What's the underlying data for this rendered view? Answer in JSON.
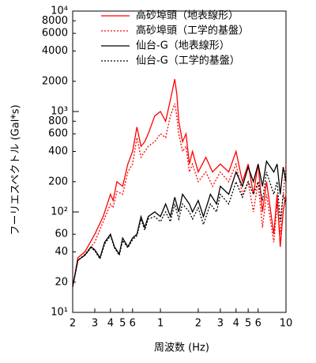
{
  "chart_data": {
    "type": "line",
    "xlabel": "周波数 (Hz)",
    "ylabel": "フーリエスペクトル (Gal*s)",
    "log_x": true,
    "log_y": true,
    "xlim": [
      0.2,
      10
    ],
    "ylim": [
      10,
      10000
    ],
    "xticks": [
      {
        "value": 0.2,
        "label": "2"
      },
      {
        "value": 0.3,
        "label": "3"
      },
      {
        "value": 0.4,
        "label": "4"
      },
      {
        "value": 0.5,
        "label": "5"
      },
      {
        "value": 0.6,
        "label": "6"
      },
      1,
      2,
      3,
      4,
      5,
      6,
      10
    ],
    "yticks": [
      {
        "value": 10,
        "label": "10¹"
      },
      20,
      40,
      60,
      {
        "value": 100,
        "label": "10²"
      },
      200,
      400,
      600,
      800,
      {
        "value": 1000,
        "label": "10³"
      },
      2000,
      4000,
      6000,
      8000,
      {
        "value": 10000,
        "label": "10⁴"
      }
    ],
    "legend": "upper right",
    "series": [
      {
        "name": "高砂埠頭（地表線形）",
        "color": "#ff0000",
        "linestyle": "solid",
        "x": [
          0.2,
          0.22,
          0.25,
          0.3,
          0.35,
          0.4,
          0.42,
          0.45,
          0.5,
          0.55,
          0.6,
          0.65,
          0.7,
          0.75,
          0.8,
          0.9,
          1.0,
          1.1,
          1.2,
          1.3,
          1.35,
          1.4,
          1.5,
          1.6,
          1.7,
          1.8,
          2,
          2.3,
          2.6,
          3,
          3.5,
          4,
          4.5,
          5,
          5.5,
          6,
          6.5,
          7,
          8,
          8.5,
          9,
          9.5,
          10
        ],
        "values": [
          18,
          35,
          40,
          60,
          90,
          150,
          130,
          200,
          180,
          300,
          400,
          700,
          450,
          500,
          600,
          900,
          1000,
          800,
          1300,
          2100,
          1500,
          800,
          500,
          600,
          300,
          400,
          250,
          350,
          250,
          300,
          250,
          400,
          200,
          300,
          150,
          300,
          100,
          200,
          60,
          150,
          45,
          100,
          150
        ]
      },
      {
        "name": "高砂埠頭（工学的基盤）",
        "color": "#ff0000",
        "linestyle": "dotted",
        "x": [
          0.2,
          0.22,
          0.25,
          0.3,
          0.35,
          0.4,
          0.42,
          0.45,
          0.5,
          0.55,
          0.6,
          0.65,
          0.7,
          0.75,
          0.8,
          0.9,
          1.0,
          1.1,
          1.2,
          1.3,
          1.35,
          1.4,
          1.5,
          1.6,
          1.7,
          1.8,
          2,
          2.3,
          2.6,
          3,
          3.5,
          4,
          4.5,
          5,
          5.5,
          6,
          6.5,
          7,
          8,
          8.5,
          9,
          9.5,
          10
        ],
        "values": [
          18,
          33,
          38,
          50,
          80,
          120,
          110,
          160,
          150,
          250,
          300,
          550,
          350,
          400,
          450,
          500,
          600,
          550,
          900,
          1200,
          900,
          600,
          400,
          450,
          250,
          300,
          200,
          250,
          180,
          250,
          200,
          300,
          150,
          200,
          100,
          200,
          70,
          150,
          50,
          120,
          60,
          150,
          300
        ]
      },
      {
        "name": "仙台-G（地表線形）",
        "color": "#000000",
        "linestyle": "solid",
        "x": [
          0.2,
          0.22,
          0.25,
          0.28,
          0.3,
          0.33,
          0.36,
          0.4,
          0.43,
          0.47,
          0.5,
          0.55,
          0.6,
          0.65,
          0.7,
          0.75,
          0.8,
          0.9,
          1,
          1.1,
          1.2,
          1.3,
          1.4,
          1.5,
          1.7,
          1.8,
          2,
          2.2,
          2.5,
          2.8,
          3,
          3.5,
          4,
          4.5,
          5,
          5.5,
          6,
          6.5,
          7,
          8,
          8.5,
          9,
          9.5,
          10
        ],
        "values": [
          18,
          33,
          37,
          45,
          42,
          35,
          50,
          60,
          45,
          38,
          55,
          45,
          55,
          60,
          90,
          70,
          90,
          100,
          90,
          120,
          90,
          140,
          100,
          150,
          120,
          100,
          130,
          90,
          150,
          120,
          180,
          150,
          250,
          180,
          280,
          200,
          300,
          180,
          320,
          250,
          300,
          150,
          280,
          200
        ]
      },
      {
        "name": "仙台-G（工学的基盤）",
        "color": "#000000",
        "linestyle": "dotted",
        "x": [
          0.2,
          0.22,
          0.25,
          0.28,
          0.3,
          0.33,
          0.36,
          0.4,
          0.43,
          0.47,
          0.5,
          0.55,
          0.6,
          0.65,
          0.7,
          0.75,
          0.8,
          0.9,
          1,
          1.1,
          1.2,
          1.3,
          1.4,
          1.5,
          1.7,
          1.8,
          2,
          2.2,
          2.5,
          2.8,
          3,
          3.5,
          4,
          4.5,
          5,
          5.5,
          6,
          6.5,
          7,
          8,
          8.5,
          9,
          9.5,
          10
        ],
        "values": [
          18,
          33,
          37,
          44,
          41,
          34,
          48,
          58,
          44,
          37,
          52,
          44,
          53,
          58,
          85,
          66,
          85,
          90,
          80,
          100,
          80,
          120,
          85,
          120,
          100,
          85,
          110,
          75,
          120,
          100,
          150,
          120,
          200,
          140,
          200,
          150,
          200,
          130,
          250,
          150,
          200,
          80,
          150,
          120
        ]
      }
    ]
  }
}
